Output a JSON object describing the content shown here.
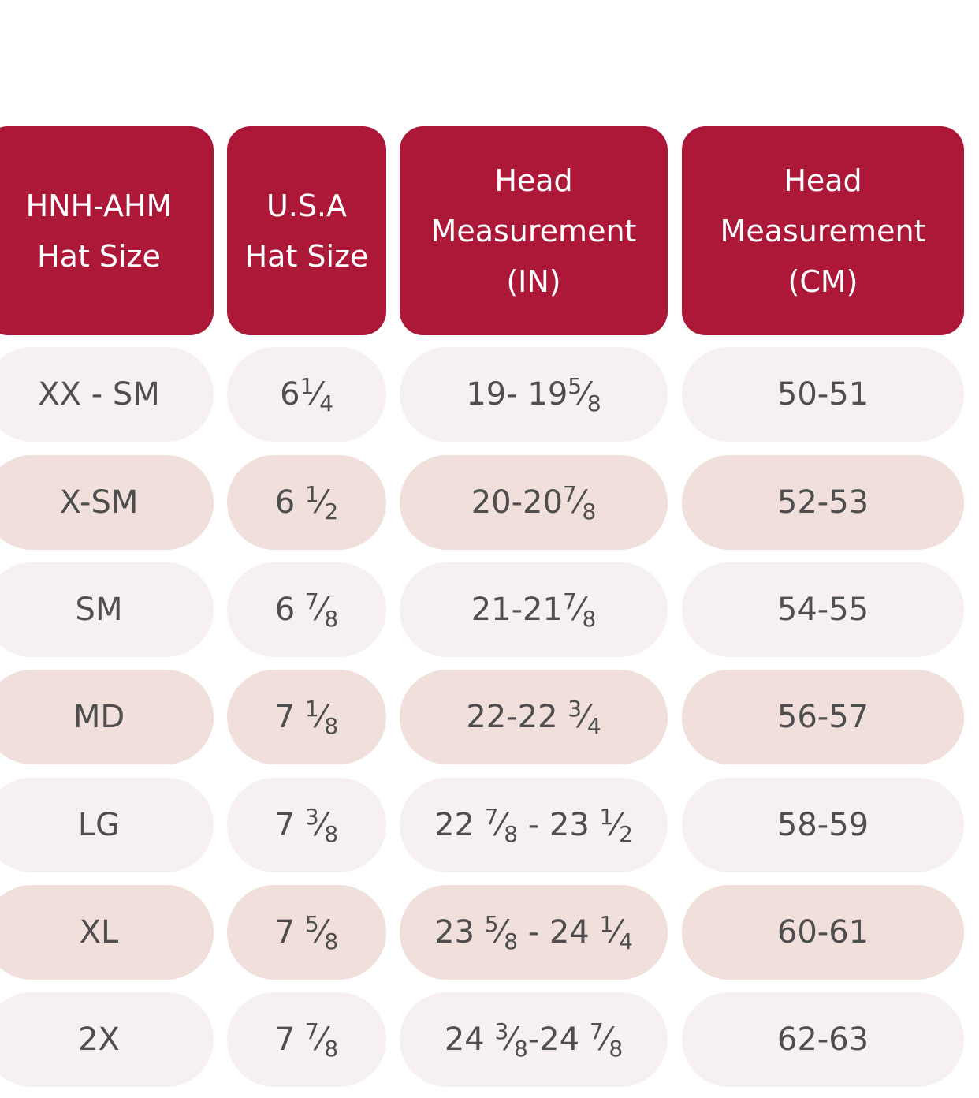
{
  "headers": [
    {
      "line1": "HNH-AHM",
      "line2": "Hat Size"
    },
    {
      "line1": "U.S.A",
      "line2": "Hat Size"
    },
    {
      "line1": "Head",
      "line2": "Measurement",
      "line3": "(IN)"
    },
    {
      "line1": "Head",
      "line2": "Measurement",
      "line3": "(CM)"
    }
  ],
  "rows": [
    {
      "hnh": "XX - SM",
      "usa": {
        "whole": "6",
        "num": "1",
        "den": "4"
      },
      "in": {
        "a": "19- 19",
        "a_num": "5",
        "a_den": "8",
        "b": "",
        "b_num": "",
        "b_den": ""
      },
      "cm": "50-51"
    },
    {
      "hnh": "X-SM",
      "usa": {
        "whole": "6 ",
        "num": "1",
        "den": "2"
      },
      "in": {
        "a": "20-20",
        "a_num": "7",
        "a_den": "8",
        "b": "",
        "b_num": "",
        "b_den": ""
      },
      "cm": "52-53"
    },
    {
      "hnh": "SM",
      "usa": {
        "whole": "6 ",
        "num": "7",
        "den": "8"
      },
      "in": {
        "a": "21-21",
        "a_num": "7",
        "a_den": "8",
        "b": "",
        "b_num": "",
        "b_den": ""
      },
      "cm": "54-55"
    },
    {
      "hnh": "MD",
      "usa": {
        "whole": "7 ",
        "num": "1",
        "den": "8"
      },
      "in": {
        "a": "22-22 ",
        "a_num": "3",
        "a_den": "4",
        "b": "",
        "b_num": "",
        "b_den": ""
      },
      "cm": "56-57"
    },
    {
      "hnh": "LG",
      "usa": {
        "whole": "7 ",
        "num": "3",
        "den": "8"
      },
      "in": {
        "a": "22 ",
        "a_num": "7",
        "a_den": "8",
        "b": " - 23 ",
        "b_num": "1",
        "b_den": "2"
      },
      "cm": "58-59"
    },
    {
      "hnh": "XL",
      "usa": {
        "whole": "7 ",
        "num": "5",
        "den": "8"
      },
      "in": {
        "a": "23 ",
        "a_num": "5",
        "a_den": "8",
        "b": " - 24 ",
        "b_num": "1",
        "b_den": "4"
      },
      "cm": "60-61"
    },
    {
      "hnh": "2X",
      "usa": {
        "whole": "7 ",
        "num": "7",
        "den": "8"
      },
      "in": {
        "a": "24 ",
        "a_num": "3",
        "a_den": "8",
        "b": "-24 ",
        "b_num": "7",
        "b_den": "8"
      },
      "cm": "62-63"
    }
  ],
  "colors": {
    "header": "#ad1839",
    "row_light": "#f6f0f0",
    "row_pink": "#f1dfdb",
    "text": "#4e4e4e"
  }
}
